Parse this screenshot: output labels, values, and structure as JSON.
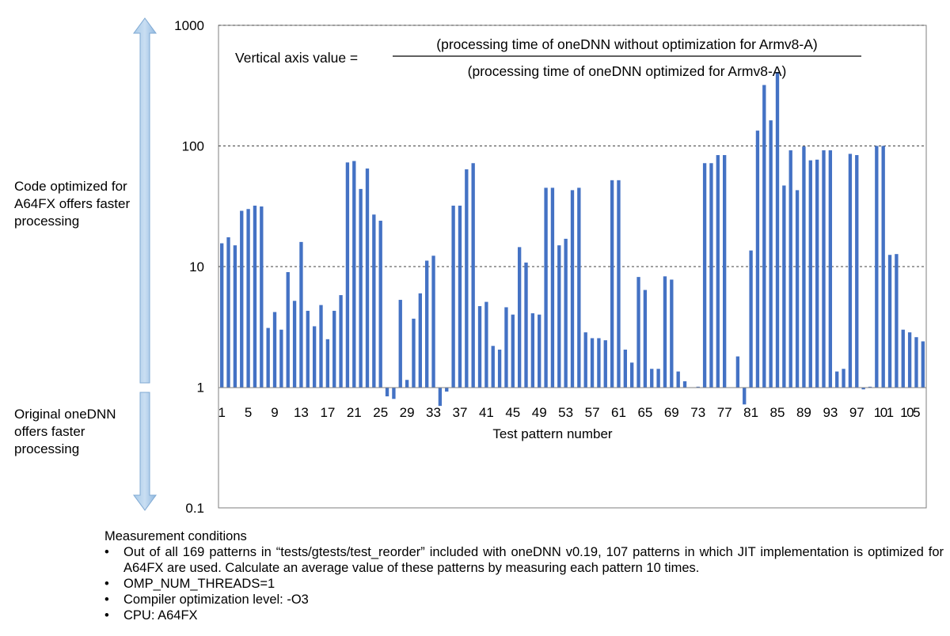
{
  "chart_data": {
    "type": "bar",
    "y_scale": "log",
    "baseline": 1,
    "ylim": [
      0.1,
      1000
    ],
    "y_ticks": [
      "1000",
      "100",
      "10",
      "1",
      "0.1"
    ],
    "y_tick_values": [
      1000,
      100,
      10,
      1,
      0.1
    ],
    "xlabel": "Test pattern number",
    "x_tick_labels": [
      "1",
      "5",
      "9",
      "13",
      "17",
      "21",
      "25",
      "29",
      "33",
      "37",
      "41",
      "45",
      "49",
      "53",
      "57",
      "61",
      "65",
      "69",
      "73",
      "77",
      "81",
      "85",
      "89",
      "93",
      "97",
      "101",
      "105"
    ],
    "gridlines": [
      10,
      100,
      1000
    ],
    "grid": "dashed horizontal",
    "color": "#4472c4",
    "formula": {
      "lhs": "Vertical axis value =",
      "numerator": "(processing time of oneDNN without optimization for Armv8-A)",
      "denominator": "(processing time of oneDNN optimized for Armv8-A)"
    },
    "values": [
      15.6,
      17.5,
      15.0,
      29,
      30,
      32,
      31.5,
      3.1,
      4.2,
      3.0,
      9.0,
      5.2,
      16.0,
      4.3,
      3.2,
      4.8,
      2.5,
      4.3,
      5.8,
      73,
      75,
      44,
      65,
      27,
      24,
      0.84,
      0.8,
      5.3,
      1.15,
      3.7,
      6.0,
      11.2,
      12.3,
      0.7,
      0.92,
      32,
      32,
      64,
      72,
      4.7,
      5.1,
      2.2,
      2.05,
      4.6,
      4.0,
      14.5,
      10.8,
      4.1,
      4.0,
      45,
      45,
      15,
      17,
      43,
      45,
      2.85,
      2.55,
      2.55,
      2.45,
      52,
      52,
      2.05,
      1.6,
      8.2,
      6.4,
      1.42,
      1.42,
      8.3,
      7.8,
      1.35,
      1.12,
      0.99,
      1.01,
      72,
      72,
      84,
      84,
      0.99,
      1.8,
      0.72,
      13.6,
      134,
      320,
      163,
      410,
      47,
      92,
      43,
      99,
      76,
      77,
      92,
      92,
      1.35,
      1.42,
      86,
      84,
      0.96,
      1.01,
      100,
      100,
      12.5,
      12.7,
      3.0,
      2.85,
      2.6,
      2.4
    ]
  },
  "side_labels": {
    "up": "Code optimized for A64FX offers faster processing",
    "down": "Original oneDNN offers faster processing"
  },
  "arrow_color": "#9dc3e6",
  "conditions": {
    "heading": "Measurement conditions",
    "items": [
      "Out of all 169 patterns in “tests/gtests/test_reorder” included with oneDNN v0.19, 107 patterns in which JIT implementation is optimized for A64FX are used. Calculate an average value of these patterns by measuring each pattern 10 times.",
      "OMP_NUM_THREADS=1",
      "Compiler optimization level: -O3",
      "CPU: A64FX"
    ]
  }
}
